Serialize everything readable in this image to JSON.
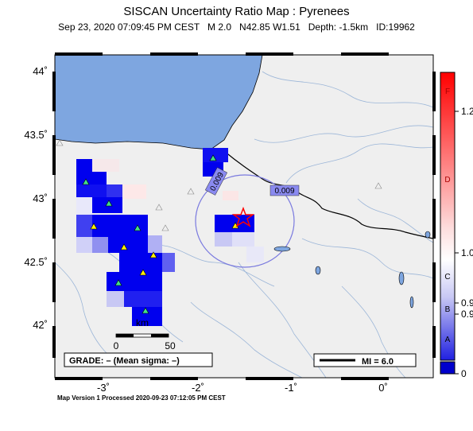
{
  "title": "SISCAN Uncertainty Ratio Map : Pyrenees",
  "subtitle": "Sep 23, 2020 07:09:45 PM CEST   M 2.0   N42.85 W1.51   Depth: -1.5km   ID:19962",
  "footer": "Map Version 1 Processed 2020-09-23 07:12:05 PM CEST",
  "axes": {
    "x_ticks": [
      "-3˚",
      "-2˚",
      "-1˚",
      "0˚"
    ],
    "y_ticks": [
      "44˚",
      "43.5˚",
      "43˚",
      "42.5˚",
      "42˚"
    ]
  },
  "contour_labels": [
    "0.009",
    "0.009"
  ],
  "scale_bar": {
    "unit": "km",
    "left": "0",
    "right": "50"
  },
  "grade_box": "GRADE: – (Mean sigma: –)",
  "mi_legend": "MI = 6.0",
  "colorbar": {
    "letters": [
      "F",
      "D",
      "C",
      "B",
      "A"
    ],
    "values": [
      "1.2",
      "1.0",
      "0.9",
      "0.9",
      "0"
    ]
  },
  "colors": {
    "sea": "#7ea6e0",
    "land": "#efefef",
    "strong": "#0000ee",
    "epicenter": "#ff0000",
    "station": "#ffee00"
  }
}
